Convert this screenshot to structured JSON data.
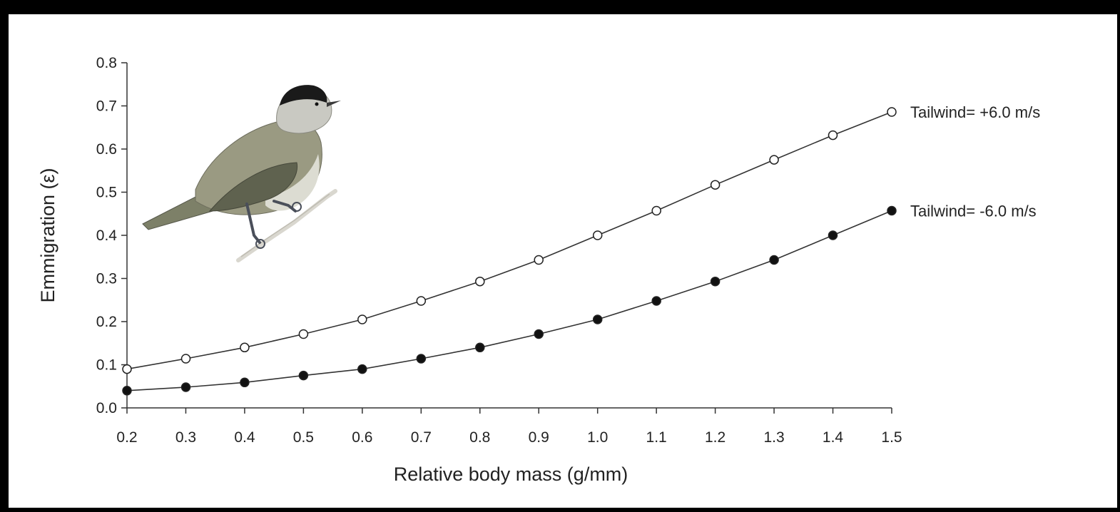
{
  "chart_data": {
    "type": "line",
    "title": "",
    "xlabel": "Relative body mass (g/mm)",
    "ylabel": "Emmigration (ε)",
    "xlim": [
      0.2,
      1.5
    ],
    "ylim": [
      0.0,
      0.8
    ],
    "x_ticks": [
      "0.2",
      "0.3",
      "0.4",
      "0.5",
      "0.6",
      "0.7",
      "0.8",
      "0.9",
      "1.0",
      "1.1",
      "1.2",
      "1.3",
      "1.4",
      "1.5"
    ],
    "y_ticks": [
      "0.0",
      "0.1",
      "0.2",
      "0.3",
      "0.4",
      "0.5",
      "0.6",
      "0.7",
      "0.8"
    ],
    "grid": false,
    "legend": "inline labels at right end of each line",
    "x": [
      0.2,
      0.3,
      0.4,
      0.5,
      0.6,
      0.7,
      0.8,
      0.9,
      1.0,
      1.1,
      1.2,
      1.3,
      1.4,
      1.5
    ],
    "series": [
      {
        "name": "Tailwind= +6.0 m/s",
        "marker": "open-circle",
        "color": "#222222",
        "values": [
          0.09,
          0.114,
          0.14,
          0.171,
          0.205,
          0.248,
          0.293,
          0.343,
          0.4,
          0.457,
          0.517,
          0.575,
          0.632,
          0.686
        ]
      },
      {
        "name": "Tailwind= -6.0 m/s",
        "marker": "filled-circle",
        "color": "#111111",
        "values": [
          0.04,
          0.048,
          0.059,
          0.075,
          0.09,
          0.114,
          0.14,
          0.171,
          0.205,
          0.248,
          0.293,
          0.343,
          0.4,
          0.457
        ]
      }
    ],
    "illustration": "blackcap-warbler-bird"
  },
  "colors": {
    "page_border": "#000000",
    "figure_background": "#ffffff",
    "axis": "#333333",
    "line": "#333333",
    "bird_body": "#8c8c74",
    "bird_cap": "#1a1a1a"
  }
}
